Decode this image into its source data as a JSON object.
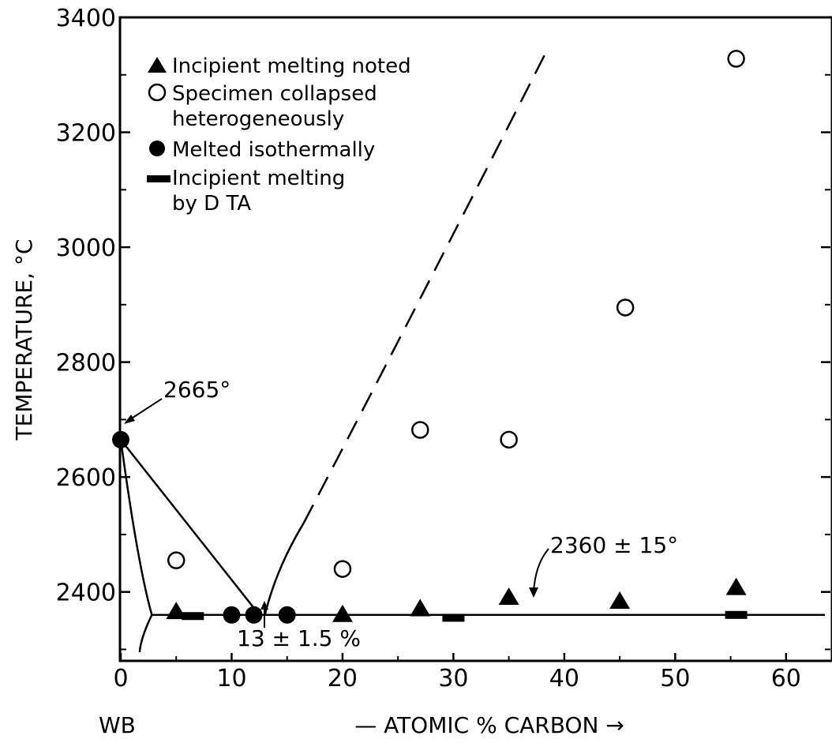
{
  "chart_data": {
    "type": "scatter",
    "xlabel": "— ATOMIC % CARBON →",
    "x_left_label": "WB",
    "ylabel": "TEMPERATURE, °C",
    "xlim": [
      0,
      64
    ],
    "ylim": [
      2280,
      3400
    ],
    "x_ticks": [
      "0",
      "10",
      "20",
      "30",
      "40",
      "50",
      "60"
    ],
    "y_ticks": [
      "2400",
      "2600",
      "2800",
      "3000",
      "3200",
      "3400"
    ],
    "legend": {
      "items": [
        {
          "marker": "triangle",
          "label": "Incipient melting noted"
        },
        {
          "marker": "open-circle",
          "label": "Specimen collapsed",
          "label2": "heterogeneously"
        },
        {
          "marker": "filled-circle",
          "label": "Melted isothermally"
        },
        {
          "marker": "bar",
          "label": "Incipient melting",
          "label2": "by D TA"
        }
      ]
    },
    "series": [
      {
        "marker": "triangle",
        "points": [
          [
            5,
            2365
          ],
          [
            20,
            2360
          ],
          [
            27,
            2370
          ],
          [
            35,
            2390
          ],
          [
            45,
            2383
          ],
          [
            55.5,
            2407
          ]
        ]
      },
      {
        "marker": "open-circle",
        "points": [
          [
            5,
            2455
          ],
          [
            20,
            2440
          ],
          [
            27,
            2682
          ],
          [
            35,
            2665
          ],
          [
            45.5,
            2895
          ],
          [
            55.5,
            3328
          ]
        ]
      },
      {
        "marker": "filled-circle",
        "points": [
          [
            0,
            2665
          ],
          [
            10,
            2360
          ],
          [
            12,
            2360
          ],
          [
            15,
            2360
          ]
        ]
      },
      {
        "marker": "bar",
        "points": [
          [
            6.5,
            2358
          ],
          [
            30,
            2355
          ],
          [
            55.5,
            2360
          ]
        ]
      }
    ],
    "annotations": {
      "melting_point": "2665°",
      "eutectic_temp": "2360 ± 15°",
      "eutectic_comp": "13 ± 1.5 %"
    }
  }
}
